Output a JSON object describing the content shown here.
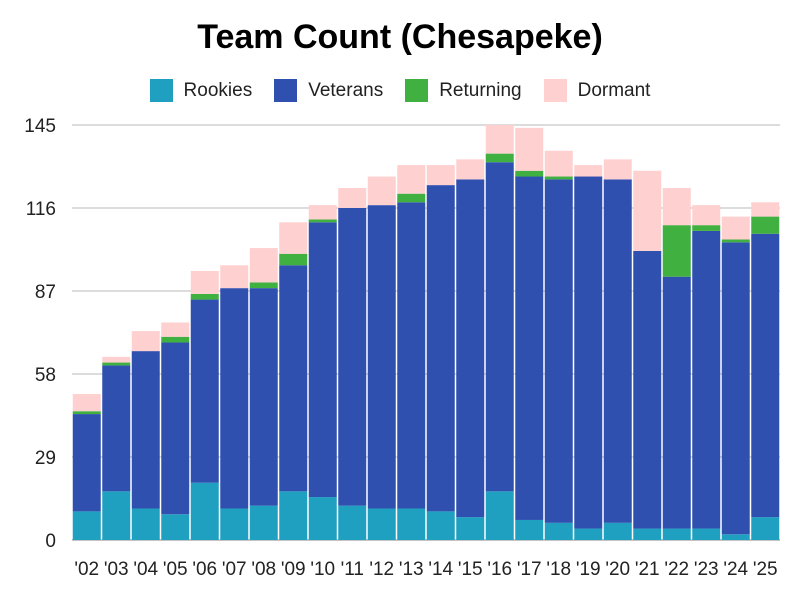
{
  "chart_data": {
    "type": "bar",
    "stacked": true,
    "title": "Team Count (Chesapeke)",
    "xlabel": "",
    "ylabel": "",
    "categories": [
      "'02",
      "'03",
      "'04",
      "'05",
      "'06",
      "'07",
      "'08",
      "'09",
      "'10",
      "'11",
      "'12",
      "'13",
      "'14",
      "'15",
      "'16",
      "'17",
      "'18",
      "'19",
      "'20",
      "'21",
      "'22",
      "'23",
      "'24",
      "'25"
    ],
    "yticks": [
      0,
      29,
      58,
      87,
      116,
      145
    ],
    "ylim": [
      0,
      145
    ],
    "grid": true,
    "legend_position": "top",
    "series": [
      {
        "name": "Rookies",
        "color": "#20a0c0",
        "values": [
          10,
          17,
          11,
          9,
          20,
          11,
          12,
          17,
          15,
          12,
          11,
          11,
          10,
          8,
          17,
          7,
          6,
          4,
          6,
          4,
          4,
          4,
          2,
          8
        ]
      },
      {
        "name": "Veterans",
        "color": "#3050b0",
        "values": [
          34,
          44,
          55,
          60,
          64,
          77,
          76,
          79,
          96,
          104,
          106,
          107,
          114,
          118,
          115,
          120,
          120,
          123,
          120,
          97,
          88,
          104,
          102,
          99
        ]
      },
      {
        "name": "Returning",
        "color": "#40b040",
        "values": [
          1,
          1,
          0,
          2,
          2,
          0,
          2,
          4,
          1,
          0,
          0,
          3,
          0,
          0,
          3,
          2,
          1,
          0,
          0,
          0,
          18,
          2,
          1,
          6
        ]
      },
      {
        "name": "Dormant",
        "color": "#ffd0d0",
        "values": [
          6,
          2,
          7,
          5,
          8,
          8,
          12,
          11,
          5,
          7,
          10,
          10,
          7,
          7,
          10,
          15,
          9,
          4,
          7,
          28,
          13,
          7,
          8,
          5
        ]
      }
    ]
  }
}
